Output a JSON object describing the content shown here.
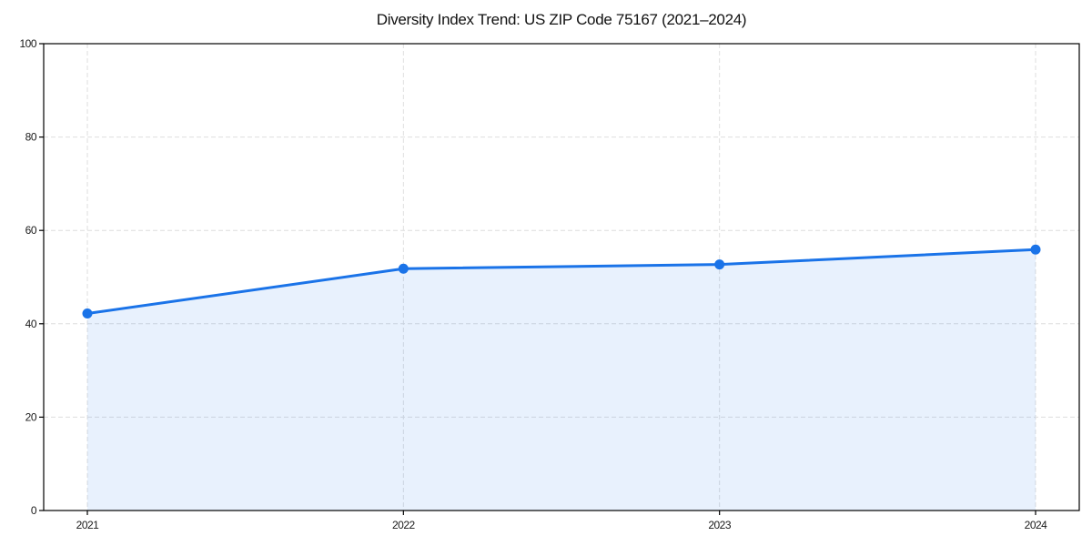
{
  "chart_data": {
    "type": "line",
    "area_fill": true,
    "title": "Diversity Index Trend: US ZIP Code 75167 (2021–2024)",
    "categories": [
      "2021",
      "2022",
      "2023",
      "2024"
    ],
    "series": [
      {
        "name": "Diversity Index",
        "values": [
          42.2,
          51.8,
          52.7,
          55.9
        ]
      }
    ],
    "xlabel": "",
    "ylabel": "",
    "ylim": [
      0,
      100
    ],
    "yticks": [
      0,
      20,
      40,
      60,
      80,
      100
    ],
    "grid": true,
    "grid_style": "dashed",
    "legend": false,
    "colors": {
      "line": "#1a73e8",
      "marker": "#1a73e8",
      "fill": "rgba(26,115,232,0.10)",
      "grid": "#dedede",
      "axis": "#000000",
      "tick_label": "#1a1a1a",
      "title": "#111111",
      "background": "#ffffff"
    }
  }
}
